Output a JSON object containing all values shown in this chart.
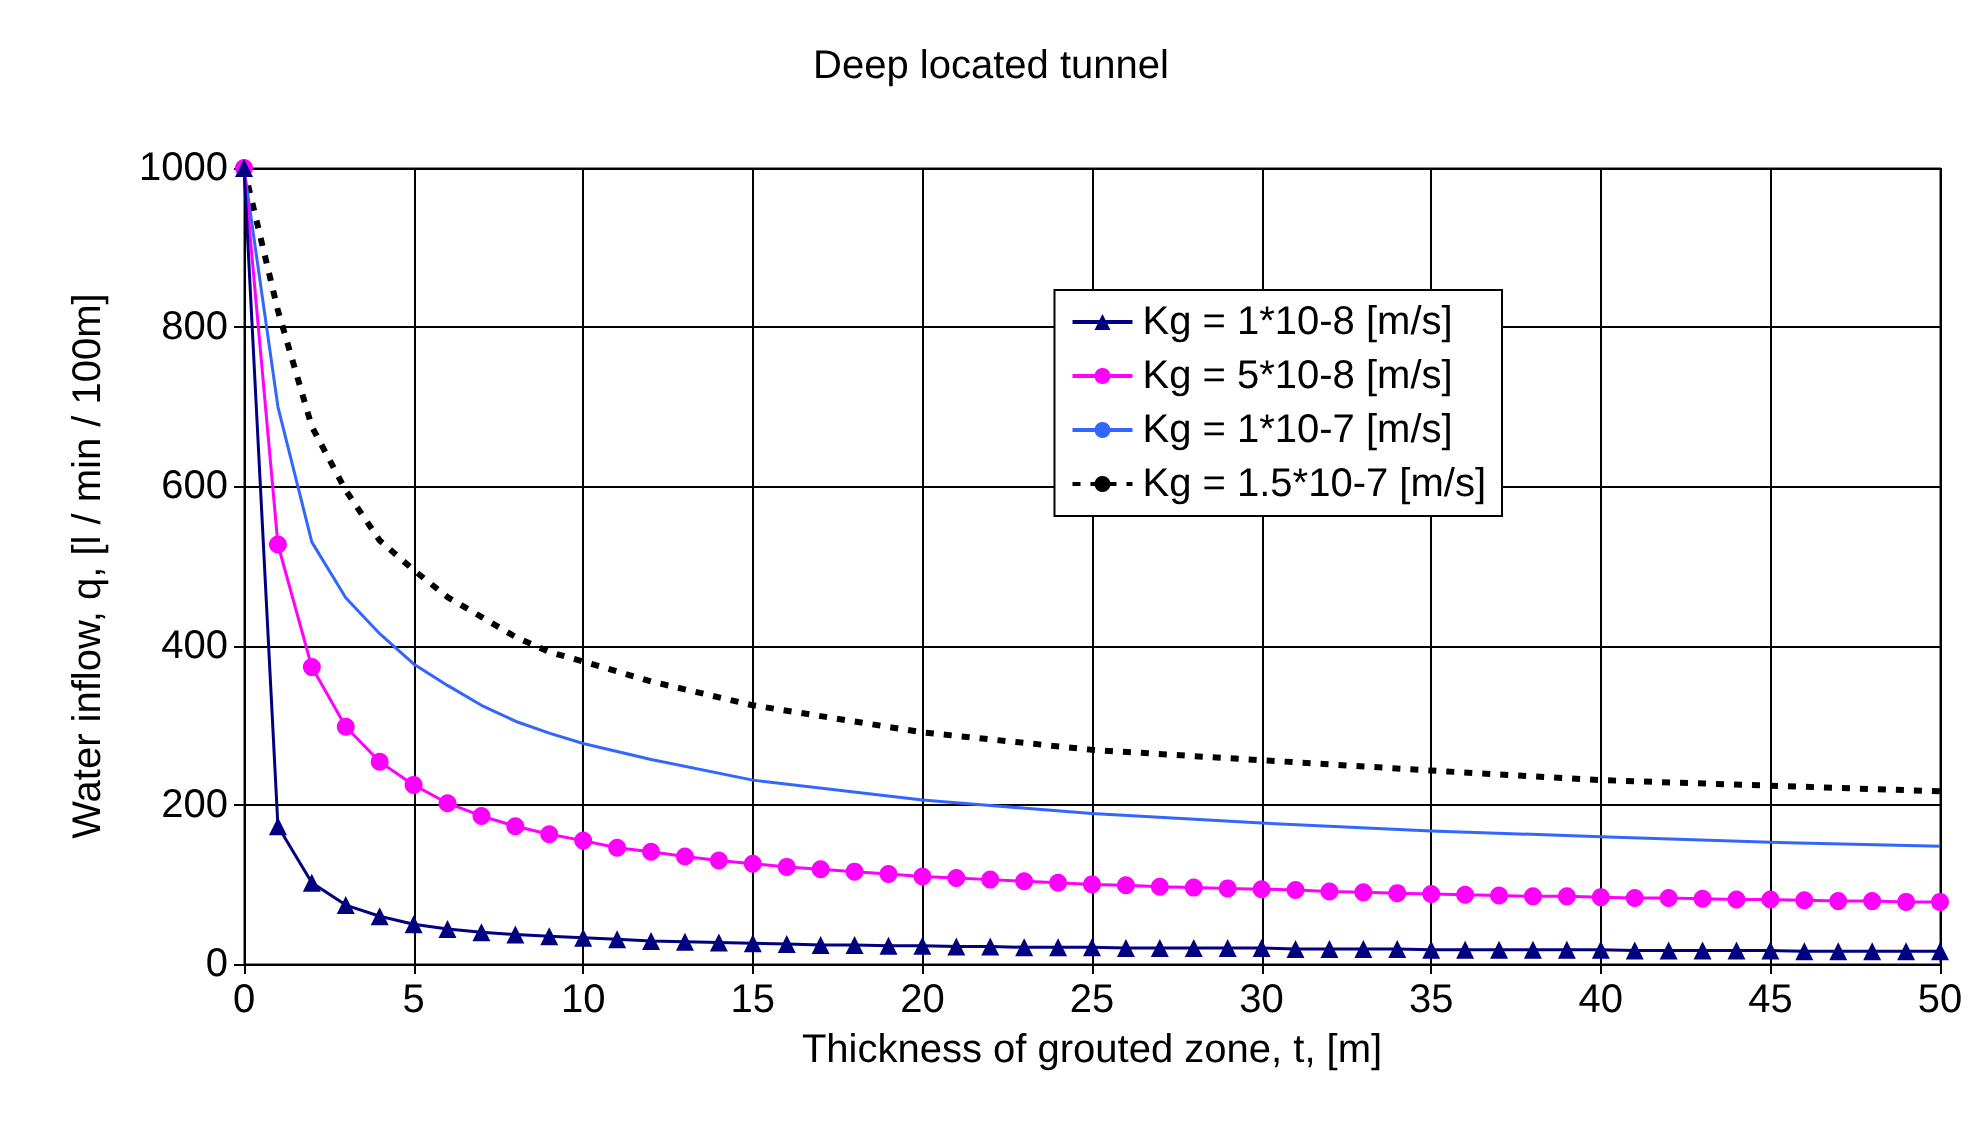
{
  "chart_data": {
    "type": "line",
    "title": "Deep located tunnel",
    "xlabel": "Thickness of grouted zone, t, [m]",
    "ylabel": "Water inflow, q, [l / min / 100m]",
    "xlim": [
      0,
      50
    ],
    "xticks": [
      0,
      5,
      10,
      15,
      20,
      25,
      30,
      35,
      40,
      45,
      50
    ],
    "ylim": [
      0,
      1000
    ],
    "yticks": [
      0,
      200,
      400,
      600,
      800,
      1000
    ],
    "grid": true,
    "legend": "top right",
    "series": [
      {
        "name": "Kg = 1*10-8 [m/s]",
        "color": "#000080",
        "marker": "triangle",
        "line_style": "solid",
        "x": [
          0,
          1,
          2,
          3,
          4,
          5,
          6,
          7,
          8,
          9,
          10,
          11,
          12,
          13,
          14,
          15,
          16,
          17,
          18,
          19,
          20,
          21,
          22,
          23,
          24,
          25,
          26,
          27,
          28,
          29,
          30,
          31,
          32,
          33,
          34,
          35,
          36,
          37,
          38,
          39,
          40,
          41,
          42,
          43,
          44,
          45,
          46,
          47,
          48,
          49,
          50
        ],
        "values": [
          1000,
          173,
          102,
          74,
          60,
          50,
          44,
          40,
          37,
          35,
          33,
          31,
          29,
          28,
          27,
          26,
          25,
          24,
          24,
          23,
          23,
          22,
          22,
          21,
          21,
          21,
          20,
          20,
          20,
          20,
          20,
          19,
          19,
          19,
          19,
          18,
          18,
          18,
          18,
          18,
          18,
          17,
          17,
          17,
          17,
          17,
          16,
          16,
          16,
          16,
          16
        ]
      },
      {
        "name": "Kg = 5*10-8 [m/s]",
        "color": "#ff00ff",
        "marker": "circle",
        "line_style": "solid",
        "x": [
          0,
          1,
          2,
          3,
          4,
          5,
          6,
          7,
          8,
          9,
          10,
          11,
          12,
          13,
          14,
          15,
          16,
          17,
          18,
          19,
          20,
          21,
          22,
          23,
          24,
          25,
          26,
          27,
          28,
          29,
          30,
          31,
          32,
          33,
          34,
          35,
          36,
          37,
          38,
          39,
          40,
          41,
          42,
          43,
          44,
          45,
          46,
          47,
          48,
          49,
          50
        ],
        "values": [
          1000,
          527,
          373,
          298,
          254,
          225,
          202,
          186,
          173,
          163,
          155,
          146,
          141,
          135,
          130,
          126,
          122,
          119,
          116,
          113,
          110,
          108,
          106,
          104,
          102,
          100,
          99,
          97,
          96,
          95,
          94,
          93,
          91,
          90,
          89,
          88,
          87,
          86,
          85,
          85,
          84,
          83,
          83,
          82,
          81,
          81,
          80,
          79,
          79,
          78,
          78
        ]
      },
      {
        "name": "Kg = 1*10-7 [m/s]",
        "color": "#3366ff",
        "marker": "none",
        "line_style": "solid",
        "x": [
          0,
          1,
          2,
          3,
          4,
          5,
          6,
          7,
          8,
          9,
          10,
          12,
          15,
          20,
          25,
          30,
          35,
          40,
          45,
          50
        ],
        "values": [
          1000,
          700,
          530,
          460,
          415,
          377,
          350,
          325,
          305,
          290,
          277,
          257,
          231,
          206,
          189,
          177,
          167,
          160,
          153,
          148
        ]
      },
      {
        "name": "Kg = 1.5*10-7 [m/s]",
        "color": "#000000",
        "marker": "none",
        "line_style": "dashed",
        "x": [
          0,
          1,
          2,
          3,
          4,
          5,
          6,
          7,
          8,
          9,
          10,
          12,
          15,
          20,
          25,
          30,
          35,
          40,
          45,
          50
        ],
        "values": [
          1000,
          821,
          675,
          595,
          532,
          495,
          461,
          436,
          411,
          392,
          380,
          355,
          325,
          291,
          269,
          256,
          243,
          231,
          224,
          217
        ]
      }
    ]
  }
}
